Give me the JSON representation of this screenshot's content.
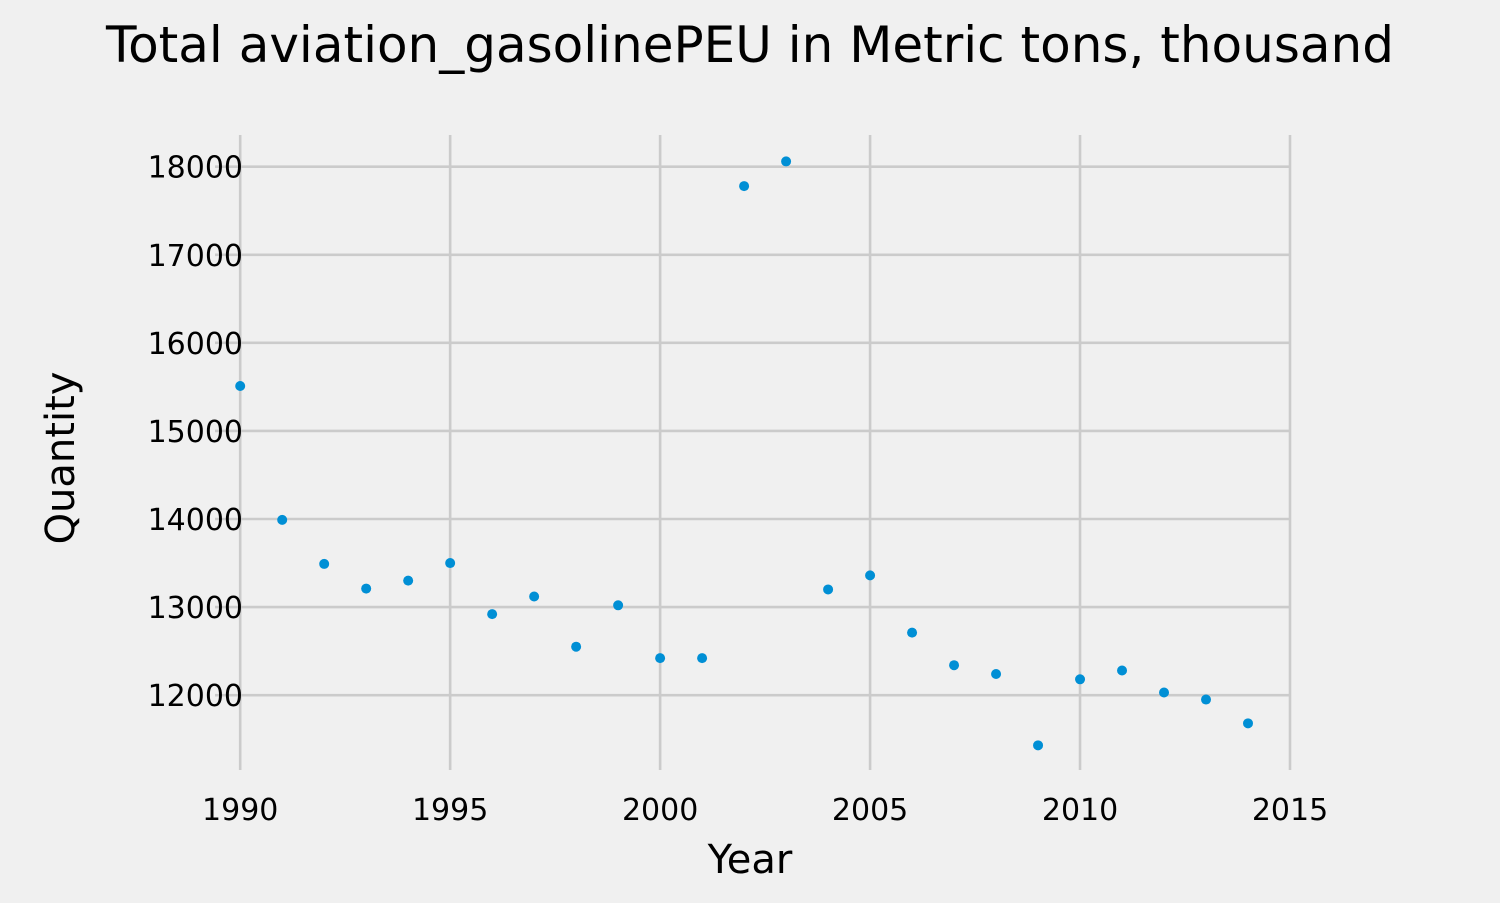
{
  "chart_data": {
    "type": "scatter",
    "title": "Total aviation_gasolinePEU in Metric tons,  thousand",
    "xlabel": "Year",
    "ylabel": "Quantity",
    "xlim": [
      1989.4,
      2015
    ],
    "ylim": [
      11150,
      18360
    ],
    "xticks": [
      1990,
      1995,
      2000,
      2005,
      2010,
      2015
    ],
    "yticks": [
      12000,
      13000,
      14000,
      15000,
      16000,
      17000,
      18000
    ],
    "grid": true,
    "marker_color": "#008fd5",
    "x": [
      1990,
      1991,
      1992,
      1993,
      1994,
      1995,
      1996,
      1997,
      1998,
      1999,
      2000,
      2001,
      2002,
      2003,
      2004,
      2005,
      2006,
      2007,
      2008,
      2009,
      2010,
      2011,
      2012,
      2013,
      2014
    ],
    "y": [
      15510,
      13990,
      13490,
      13210,
      13300,
      13500,
      12920,
      13120,
      12550,
      13020,
      12420,
      12420,
      17780,
      18060,
      13200,
      13360,
      12710,
      12340,
      12240,
      11430,
      12180,
      12280,
      12030,
      11950,
      11680
    ]
  }
}
